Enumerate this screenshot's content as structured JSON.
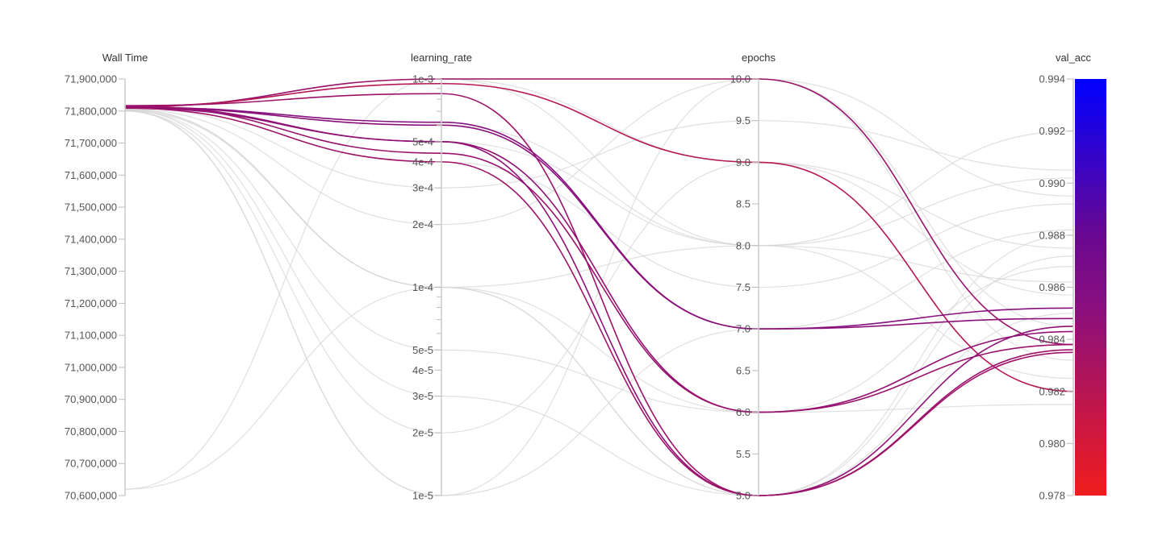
{
  "chart_data": {
    "type": "parallel-coordinates",
    "axes": [
      {
        "name": "Wall Time",
        "scale": "linear",
        "range": [
          70600000,
          71900000
        ],
        "ticks": [
          71900000,
          71800000,
          71700000,
          71600000,
          71500000,
          71400000,
          71300000,
          71200000,
          71100000,
          71000000,
          70900000,
          70800000,
          70700000,
          70600000
        ],
        "tick_labels": [
          "71,900,000",
          "71,800,000",
          "71,700,000",
          "71,600,000",
          "71,500,000",
          "71,400,000",
          "71,300,000",
          "71,200,000",
          "71,100,000",
          "71,000,000",
          "70,900,000",
          "70,800,000",
          "70,700,000",
          "70,600,000"
        ]
      },
      {
        "name": "learning_rate",
        "scale": "log",
        "range": [
          1e-05,
          0.001
        ],
        "ticks": [
          0.001,
          0.0005,
          0.0004,
          0.0003,
          0.0002,
          0.0001,
          5e-05,
          4e-05,
          3e-05,
          2e-05,
          1e-05
        ],
        "tick_labels": [
          "1e-3",
          "5e-4",
          "4e-4",
          "3e-4",
          "2e-4",
          "1e-4",
          "5e-5",
          "4e-5",
          "3e-5",
          "2e-5",
          "1e-5"
        ],
        "minor_ticks": [
          0.0009,
          0.0008,
          0.0007,
          0.0006,
          9e-05,
          8e-05,
          7e-05,
          6e-05
        ]
      },
      {
        "name": "epochs",
        "scale": "linear",
        "range": [
          5,
          10
        ],
        "ticks": [
          10,
          9.5,
          9,
          8.5,
          8,
          7.5,
          7,
          6.5,
          6,
          5.5,
          5
        ],
        "tick_labels": [
          "10.0",
          "9.5",
          "9.0",
          "8.5",
          "8.0",
          "7.5",
          "7.0",
          "6.5",
          "6.0",
          "5.5",
          "5.0"
        ]
      },
      {
        "name": "val_acc",
        "scale": "linear",
        "range": [
          0.978,
          0.994
        ],
        "ticks": [
          0.994,
          0.992,
          0.99,
          0.988,
          0.986,
          0.984,
          0.982,
          0.98,
          0.978
        ],
        "tick_labels": [
          "0.994",
          "0.992",
          "0.990",
          "0.988",
          "0.986",
          "0.984",
          "0.982",
          "0.980",
          "0.978"
        ]
      }
    ],
    "colorscale": {
      "min_color": "#f01d1d",
      "mid_color": "#7a0e8a",
      "max_color": "#0000ff"
    },
    "highlighted_runs": [
      {
        "values": [
          71813000,
          0.001,
          10,
          0.9838
        ]
      },
      {
        "values": [
          71815000,
          0.00095,
          9,
          0.982
        ]
      },
      {
        "values": [
          71817000,
          0.00085,
          5,
          0.9836
        ]
      },
      {
        "values": [
          71812000,
          0.00062,
          7,
          0.9852
        ]
      },
      {
        "values": [
          71811000,
          0.0006,
          7,
          0.9848
        ]
      },
      {
        "values": [
          71814000,
          0.0005,
          6,
          0.9843
        ]
      },
      {
        "values": [
          71816000,
          0.00044,
          6,
          0.9838
        ]
      },
      {
        "values": [
          71810000,
          0.0005,
          5,
          0.9845
        ]
      },
      {
        "values": [
          71809000,
          0.0004,
          5,
          0.9835
        ]
      }
    ],
    "background_runs": [
      {
        "values": [
          71812000,
          0.0003,
          9.5,
          0.9905
        ]
      },
      {
        "values": [
          71805000,
          0.0001,
          8,
          0.992
        ]
      },
      {
        "values": [
          70620000,
          0.001,
          8,
          0.9902
        ]
      },
      {
        "values": [
          70620000,
          0.0001,
          5,
          0.988
        ]
      },
      {
        "values": [
          71810000,
          0.001,
          10,
          0.9895
        ]
      },
      {
        "values": [
          71800000,
          1e-05,
          7,
          0.9882
        ]
      },
      {
        "values": [
          71800000,
          2e-05,
          9,
          0.9875
        ]
      },
      {
        "values": [
          71806000,
          0.0001,
          6,
          0.9868
        ]
      },
      {
        "values": [
          71808000,
          0.0005,
          8,
          0.9862
        ]
      },
      {
        "values": [
          71811000,
          0.001,
          9,
          0.9857
        ]
      },
      {
        "values": [
          71804000,
          3e-05,
          5,
          0.985
        ]
      },
      {
        "values": [
          71807000,
          0.0002,
          10,
          0.9845
        ]
      },
      {
        "values": [
          71802000,
          1e-05,
          10,
          0.9832
        ]
      },
      {
        "values": [
          71809000,
          0.0006,
          8,
          0.9825
        ]
      },
      {
        "values": [
          71803000,
          5e-05,
          6,
          0.9815
        ]
      },
      {
        "values": [
          71801000,
          0.0001,
          5,
          0.9872
        ]
      },
      {
        "values": [
          71810000,
          0.0004,
          7.5,
          0.9892
        ]
      }
    ]
  }
}
